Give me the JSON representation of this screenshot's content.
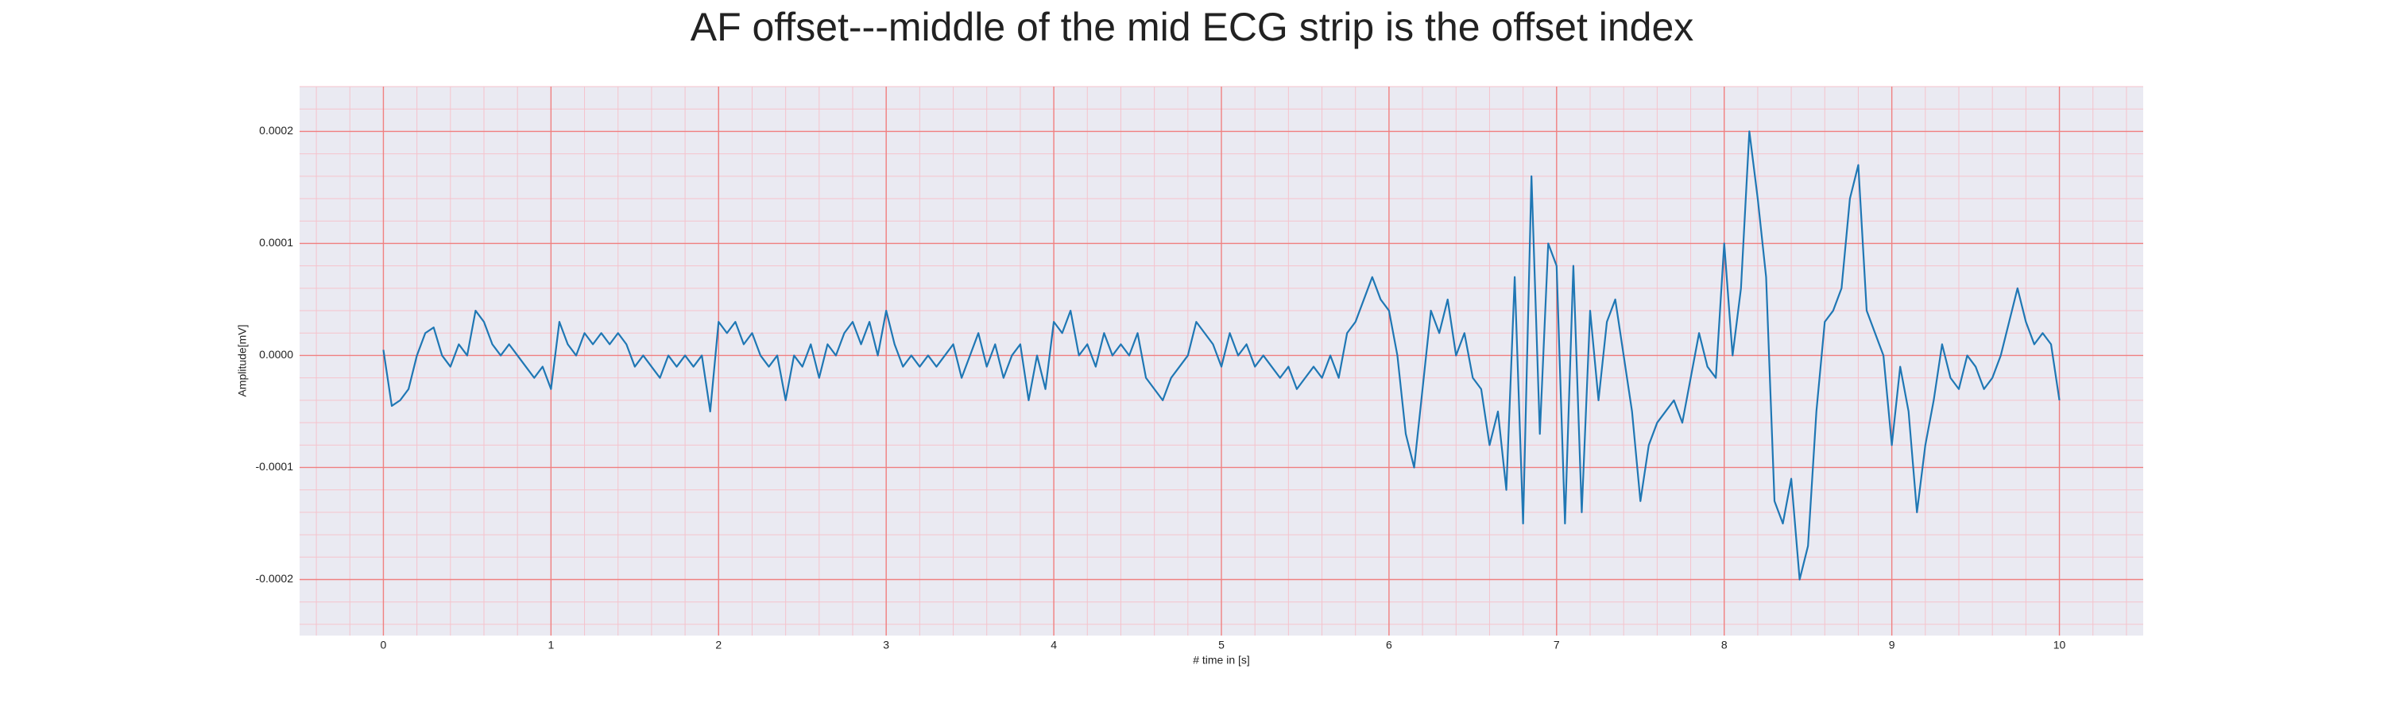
{
  "chart_data": {
    "type": "line",
    "title": "AF offset---middle of the mid ECG strip is the offset index",
    "xlabel": "# time in [s]",
    "ylabel": "Amplitude[mV]",
    "x": [
      0,
      0.05,
      0.1,
      0.15,
      0.2,
      0.25,
      0.3,
      0.35,
      0.4,
      0.45,
      0.5,
      0.55,
      0.6,
      0.65,
      0.7,
      0.75,
      0.8,
      0.85,
      0.9,
      0.95,
      1,
      1.05,
      1.1,
      1.15,
      1.2,
      1.25,
      1.3,
      1.35,
      1.4,
      1.45,
      1.5,
      1.55,
      1.6,
      1.65,
      1.7,
      1.75,
      1.8,
      1.85,
      1.9,
      1.95,
      2,
      2.05,
      2.1,
      2.15,
      2.2,
      2.25,
      2.3,
      2.35,
      2.4,
      2.45,
      2.5,
      2.55,
      2.6,
      2.65,
      2.7,
      2.75,
      2.8,
      2.85,
      2.9,
      2.95,
      3,
      3.05,
      3.1,
      3.15,
      3.2,
      3.25,
      3.3,
      3.35,
      3.4,
      3.45,
      3.5,
      3.55,
      3.6,
      3.65,
      3.7,
      3.75,
      3.8,
      3.85,
      3.9,
      3.95,
      4,
      4.05,
      4.1,
      4.15,
      4.2,
      4.25,
      4.3,
      4.35,
      4.4,
      4.45,
      4.5,
      4.55,
      4.6,
      4.65,
      4.7,
      4.75,
      4.8,
      4.85,
      4.9,
      4.95,
      5,
      5.05,
      5.1,
      5.15,
      5.2,
      5.25,
      5.3,
      5.35,
      5.4,
      5.45,
      5.5,
      5.55,
      5.6,
      5.65,
      5.7,
      5.75,
      5.8,
      5.85,
      5.9,
      5.95,
      6,
      6.05,
      6.1,
      6.15,
      6.2,
      6.25,
      6.3,
      6.35,
      6.4,
      6.45,
      6.5,
      6.55,
      6.6,
      6.65,
      6.7,
      6.75,
      6.8,
      6.85,
      6.9,
      6.95,
      7,
      7.05,
      7.1,
      7.15,
      7.2,
      7.25,
      7.3,
      7.35,
      7.4,
      7.45,
      7.5,
      7.55,
      7.6,
      7.65,
      7.7,
      7.75,
      7.8,
      7.85,
      7.9,
      7.95,
      8,
      8.05,
      8.1,
      8.15,
      8.2,
      8.25,
      8.3,
      8.35,
      8.4,
      8.45,
      8.5,
      8.55,
      8.6,
      8.65,
      8.7,
      8.75,
      8.8,
      8.85,
      8.9,
      8.95,
      9,
      9.05,
      9.1,
      9.15,
      9.2,
      9.25,
      9.3,
      9.35,
      9.4,
      9.45,
      9.5,
      9.55,
      9.6,
      9.65,
      9.7,
      9.75,
      9.8,
      9.85,
      9.9,
      9.95,
      10
    ],
    "series": [
      {
        "color": "#1f77b4",
        "values": [
          5e-06,
          -4.5e-05,
          -4e-05,
          -3e-05,
          0,
          2e-05,
          2.5e-05,
          0,
          -1e-05,
          1e-05,
          0,
          4e-05,
          3e-05,
          1e-05,
          0,
          1e-05,
          0,
          -1e-05,
          -2e-05,
          -1e-05,
          -3e-05,
          3e-05,
          1e-05,
          0,
          2e-05,
          1e-05,
          2e-05,
          1e-05,
          2e-05,
          1e-05,
          -1e-05,
          0,
          -1e-05,
          -2e-05,
          0,
          -1e-05,
          0,
          -1e-05,
          0,
          -5e-05,
          3e-05,
          2e-05,
          3e-05,
          1e-05,
          2e-05,
          0,
          -1e-05,
          0,
          -4e-05,
          0,
          -1e-05,
          1e-05,
          -2e-05,
          1e-05,
          0,
          2e-05,
          3e-05,
          1e-05,
          3e-05,
          0,
          4e-05,
          1e-05,
          -1e-05,
          0,
          -1e-05,
          0,
          -1e-05,
          0,
          1e-05,
          -2e-05,
          0,
          2e-05,
          -1e-05,
          1e-05,
          -2e-05,
          0,
          1e-05,
          -4e-05,
          0,
          -3e-05,
          3e-05,
          2e-05,
          4e-05,
          0,
          1e-05,
          -1e-05,
          2e-05,
          0,
          1e-05,
          0,
          2e-05,
          -2e-05,
          -3e-05,
          -4e-05,
          -2e-05,
          -1e-05,
          0,
          3e-05,
          2e-05,
          1e-05,
          -1e-05,
          2e-05,
          0,
          1e-05,
          -1e-05,
          0,
          -1e-05,
          -2e-05,
          -1e-05,
          -3e-05,
          -2e-05,
          -1e-05,
          -2e-05,
          0,
          -2e-05,
          2e-05,
          3e-05,
          5e-05,
          7e-05,
          5e-05,
          4e-05,
          0,
          -7e-05,
          -0.0001,
          -3e-05,
          4e-05,
          2e-05,
          5e-05,
          0,
          2e-05,
          -2e-05,
          -3e-05,
          -8e-05,
          -5e-05,
          -0.00012,
          7e-05,
          -0.00015,
          0.00016,
          -7e-05,
          0.0001,
          8e-05,
          -0.00015,
          8e-05,
          -0.00014,
          4e-05,
          -4e-05,
          3e-05,
          5e-05,
          0,
          -5e-05,
          -0.00013,
          -8e-05,
          -6e-05,
          -5e-05,
          -4e-05,
          -6e-05,
          -2e-05,
          2e-05,
          -1e-05,
          -2e-05,
          0.0001,
          0,
          6e-05,
          0.0002,
          0.00014,
          7e-05,
          -0.00013,
          -0.00015,
          -0.00011,
          -0.0002,
          -0.00017,
          -5e-05,
          3e-05,
          4e-05,
          6e-05,
          0.00014,
          0.00017,
          4e-05,
          2e-05,
          0,
          -8e-05,
          -1e-05,
          -5e-05,
          -0.00014,
          -8e-05,
          -4e-05,
          1e-05,
          -2e-05,
          -3e-05,
          0,
          -1e-05,
          -3e-05,
          -2e-05,
          0,
          3e-05,
          6e-05,
          3e-05,
          1e-05,
          2e-05,
          1e-05,
          -4e-05
        ]
      }
    ],
    "xlim": [
      -0.5,
      10.5
    ],
    "xticks": [
      0,
      1,
      2,
      3,
      4,
      5,
      6,
      7,
      8,
      9,
      10
    ],
    "ylim": [
      -0.00025,
      0.00024
    ],
    "yticks": [
      -0.0002,
      -0.0001,
      {
        "value": 0,
        "label": "0.0000"
      },
      0.0001,
      0.0002
    ],
    "grid": true,
    "minor_grid": true
  }
}
